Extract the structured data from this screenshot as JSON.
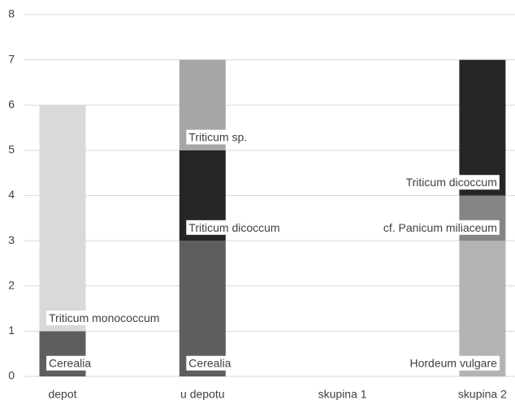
{
  "chart_data": {
    "type": "stacked_bar",
    "categories": [
      "depot",
      "u depotu",
      "skupina 1",
      "skupina 2"
    ],
    "series": [
      {
        "name": "Cerealia",
        "color": "#5e5e5e",
        "values": [
          1,
          3,
          null,
          null
        ]
      },
      {
        "name": "Triticum monococcum",
        "color": "#d9d9d9",
        "values": [
          5,
          null,
          null,
          null
        ]
      },
      {
        "name": "Hordeum vulgare",
        "color": "#b3b3b3",
        "values": [
          null,
          null,
          null,
          3
        ]
      },
      {
        "name": "cf. Panicum miliaceum",
        "color": "#858585",
        "values": [
          null,
          null,
          null,
          1
        ]
      },
      {
        "name": "Triticum dicoccum",
        "color": "#262626",
        "values": [
          null,
          2,
          null,
          3
        ]
      },
      {
        "name": "Triticum sp.",
        "color": "#a6a6a6",
        "values": [
          null,
          2,
          null,
          null
        ]
      }
    ],
    "ylim": [
      0,
      8
    ],
    "yticks": [
      0,
      1,
      2,
      3,
      4,
      5,
      6,
      7,
      8
    ],
    "grid": true
  }
}
